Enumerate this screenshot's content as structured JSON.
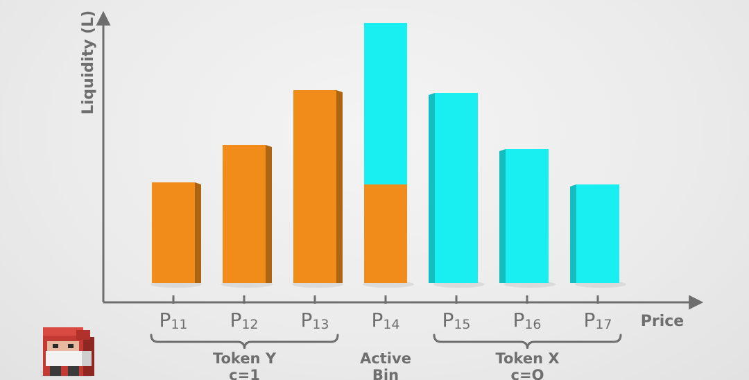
{
  "chart_data": {
    "type": "bar",
    "xlabel": "Price",
    "ylabel": "Liquidity (L)",
    "categories": [
      {
        "base": "P",
        "sub": "11"
      },
      {
        "base": "P",
        "sub": "12"
      },
      {
        "base": "P",
        "sub": "13"
      },
      {
        "base": "P",
        "sub": "14"
      },
      {
        "base": "P",
        "sub": "15"
      },
      {
        "base": "P",
        "sub": "16"
      },
      {
        "base": "P",
        "sub": "17"
      }
    ],
    "series": [
      {
        "token": "Y",
        "values": [
          145,
          199,
          278,
          142,
          0,
          0,
          0
        ]
      },
      {
        "token": "X",
        "values": [
          0,
          0,
          0,
          233,
          274,
          193,
          142
        ]
      }
    ],
    "ylim": [
      0,
      390
    ],
    "grid": false,
    "colors": {
      "token_y": "#f18c1b",
      "token_x": "#19eef0",
      "axis": "#6e6e6e"
    },
    "groups": [
      {
        "line1": "Token Y",
        "line2": "c=1",
        "from": 0,
        "to": 2
      },
      {
        "line1": "Active",
        "line2": "Bin",
        "at": 3
      },
      {
        "line1": "Token X",
        "line2": "c=O",
        "from": 4,
        "to": 6
      }
    ]
  },
  "mascot": {
    "icon": "voxel-gnome-icon"
  }
}
